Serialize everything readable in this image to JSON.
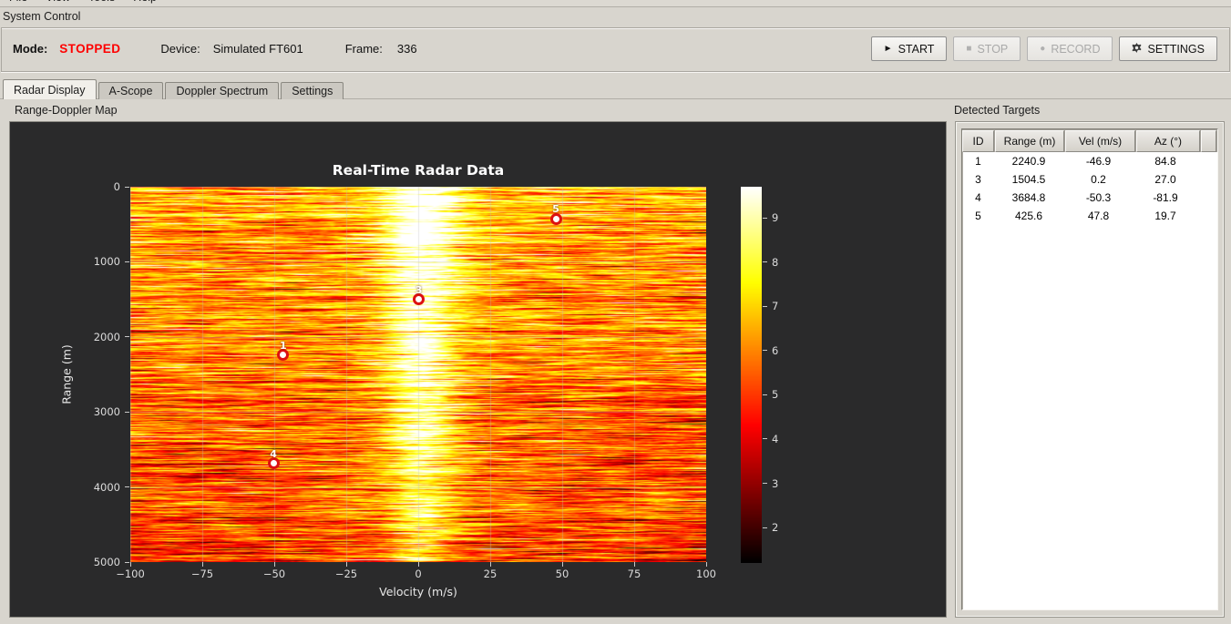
{
  "menu": {
    "items": [
      "File",
      "View",
      "Tools",
      "Help"
    ]
  },
  "system_control": {
    "label": "System Control",
    "mode_label": "Mode:",
    "mode_value": "STOPPED",
    "mode_color": "#fe0000",
    "device_label": "Device:",
    "device_value": "Simulated FT601",
    "frame_label": "Frame:",
    "frame_value": "336",
    "buttons": [
      {
        "label": "START",
        "icon": "play-icon",
        "glyph": "►",
        "enabled": true
      },
      {
        "label": "STOP",
        "icon": "stop-icon",
        "glyph": "■",
        "enabled": false
      },
      {
        "label": "RECORD",
        "icon": "record-icon",
        "glyph": "●",
        "enabled": false
      },
      {
        "label": "SETTINGS",
        "icon": "gear-icon",
        "glyph": "gear",
        "enabled": true
      }
    ]
  },
  "tabs": [
    {
      "label": "Radar Display",
      "active": true
    },
    {
      "label": "A-Scope",
      "active": false
    },
    {
      "label": "Doppler Spectrum",
      "active": false
    },
    {
      "label": "Settings",
      "active": false
    }
  ],
  "left_panel": {
    "title": "Range-Doppler Map"
  },
  "right_panel": {
    "title": "Detected Targets",
    "table": {
      "columns": [
        "ID",
        "Range (m)",
        "Vel (m/s)",
        "Az (°)"
      ],
      "rows": [
        [
          "1",
          "2240.9",
          "-46.9",
          "84.8"
        ],
        [
          "3",
          "1504.5",
          "0.2",
          "27.0"
        ],
        [
          "4",
          "3684.8",
          "-50.3",
          "-81.9"
        ],
        [
          "5",
          "425.6",
          "47.8",
          "19.7"
        ]
      ]
    }
  },
  "chart_data": {
    "type": "heatmap",
    "title": "Real-Time Radar Data",
    "xlabel": "Velocity (m/s)",
    "ylabel": "Range (m)",
    "xlim": [
      -100,
      100
    ],
    "ylim": [
      0,
      5000
    ],
    "y_inverted": true,
    "xticks": [
      -100,
      -75,
      -50,
      -25,
      0,
      25,
      50,
      75,
      100
    ],
    "yticks": [
      0,
      1000,
      2000,
      3000,
      4000,
      5000
    ],
    "grid": true,
    "background": "#2a2a2b",
    "colormap": "hot",
    "colorbar": {
      "vmin": 1.2,
      "vmax": 9.7,
      "ticks": [
        2,
        3,
        4,
        5,
        6,
        7,
        8,
        9
      ]
    },
    "pattern": "random radar clutter noise in hot colormap; bright vertical zero-Doppler band centered near 0 m/s (white at short range fading to yellow at long range); overall intensity decreases with range",
    "targets": [
      {
        "id": 1,
        "range_m": 2240.9,
        "vel_mps": -46.9,
        "az_deg": 84.8
      },
      {
        "id": 3,
        "range_m": 1504.5,
        "vel_mps": 0.2,
        "az_deg": 27.0
      },
      {
        "id": 4,
        "range_m": 3684.8,
        "vel_mps": -50.3,
        "az_deg": -81.9
      },
      {
        "id": 5,
        "range_m": 425.6,
        "vel_mps": 47.8,
        "az_deg": 19.7
      }
    ]
  }
}
